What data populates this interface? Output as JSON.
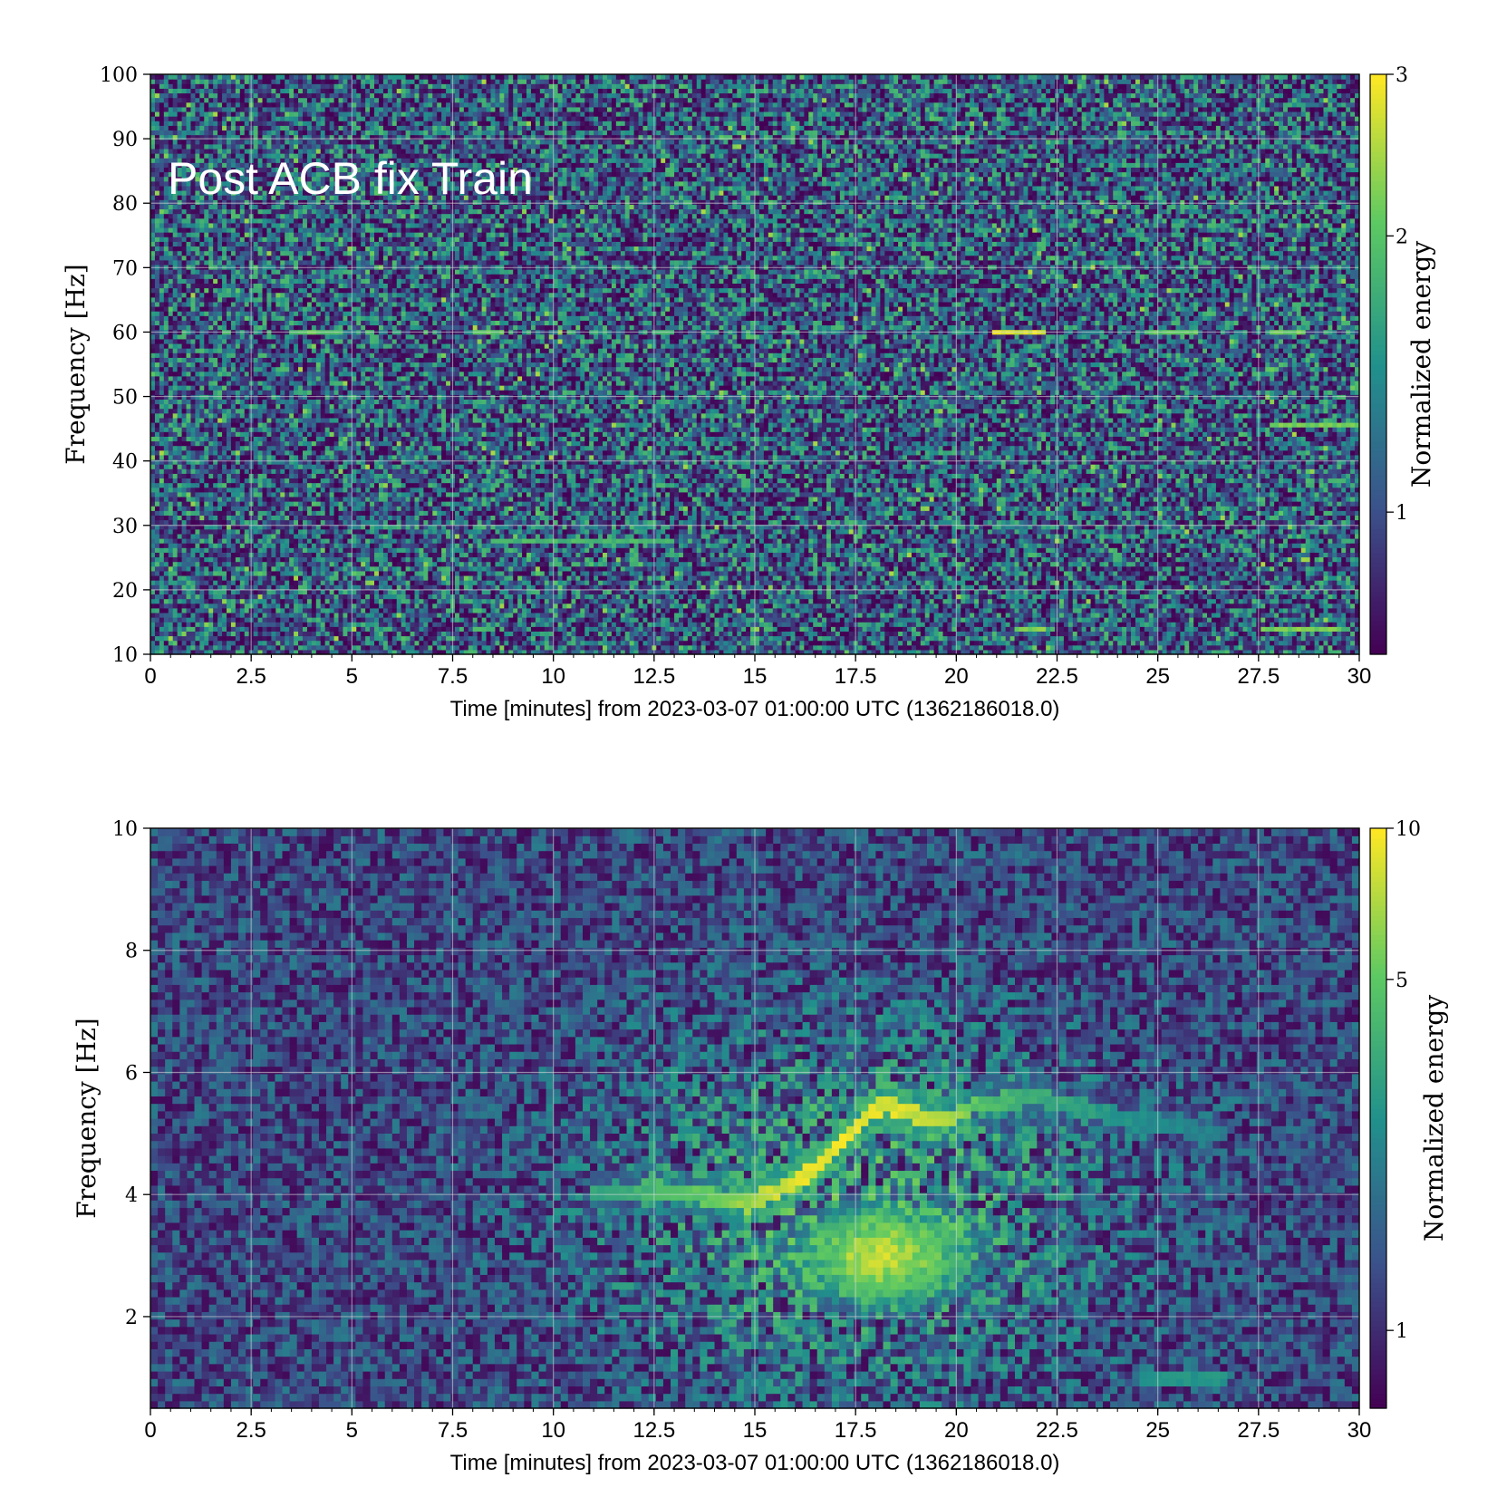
{
  "chart_data": [
    {
      "type": "heatmap",
      "annotation": "Post ACB fix Train",
      "xlabel": "Time [minutes] from 2023-03-07 01:00:00 UTC (1362186018.0)",
      "ylabel": "Frequency [Hz]",
      "xlim": [
        0,
        30
      ],
      "ylim": [
        10,
        100
      ],
      "x_ticks": [
        "0",
        "2.5",
        "5",
        "7.5",
        "10",
        "12.5",
        "15",
        "17.5",
        "20",
        "22.5",
        "25",
        "27.5",
        "30"
      ],
      "y_ticks": [
        "10",
        "20",
        "30",
        "40",
        "50",
        "60",
        "70",
        "80",
        "90",
        "100"
      ],
      "colorbar": {
        "label": "Normalized energy",
        "scale": "log",
        "ticks": [
          "1",
          "2",
          "3"
        ],
        "range": [
          0.7,
          3
        ]
      },
      "colormap": [
        "#440154",
        "#3b528b",
        "#21918c",
        "#5ec962",
        "#fde725"
      ],
      "grid": true,
      "features": [
        {
          "kind": "line",
          "freq": 60,
          "t_start": 3.5,
          "t_end": 4.8,
          "energy": 2.2
        },
        {
          "kind": "line",
          "freq": 60,
          "t_start": 8.0,
          "t_end": 8.8,
          "energy": 2.2
        },
        {
          "kind": "line",
          "freq": 60,
          "t_start": 12.4,
          "t_end": 13.0,
          "energy": 2.0
        },
        {
          "kind": "line",
          "freq": 60,
          "t_start": 20.9,
          "t_end": 22.2,
          "energy": 3.0
        },
        {
          "kind": "line",
          "freq": 60,
          "t_start": 24.8,
          "t_end": 26.0,
          "energy": 2.2
        },
        {
          "kind": "line",
          "freq": 60,
          "t_start": 27.8,
          "t_end": 28.7,
          "energy": 2.3
        },
        {
          "kind": "line",
          "freq": 45.5,
          "t_start": 27.8,
          "t_end": 30.0,
          "energy": 2.4
        },
        {
          "kind": "line",
          "freq": 27.5,
          "t_start": 8.5,
          "t_end": 13.0,
          "energy": 2.0
        },
        {
          "kind": "line",
          "freq": 14,
          "t_start": 21.5,
          "t_end": 22.2,
          "energy": 2.4
        },
        {
          "kind": "line",
          "freq": 14,
          "t_start": 27.6,
          "t_end": 29.6,
          "energy": 2.4
        },
        {
          "kind": "line",
          "freq": 14,
          "t_start": 8.0,
          "t_end": 8.6,
          "energy": 2.0
        },
        {
          "kind": "vline",
          "t": 16.8,
          "f_start": 17,
          "f_end": 37,
          "energy": 2.0
        },
        {
          "kind": "vline",
          "t": 12.0,
          "f_start": 24,
          "f_end": 30,
          "energy": 2.0
        }
      ]
    },
    {
      "type": "heatmap",
      "xlabel": "Time [minutes] from 2023-03-07 01:00:00 UTC (1362186018.0)",
      "ylabel": "Frequency [Hz]",
      "xlim": [
        0,
        30
      ],
      "ylim": [
        0.5,
        10
      ],
      "x_ticks": [
        "0",
        "2.5",
        "5",
        "7.5",
        "10",
        "12.5",
        "15",
        "17.5",
        "20",
        "22.5",
        "25",
        "27.5",
        "30"
      ],
      "y_ticks": [
        "2",
        "4",
        "6",
        "8",
        "10"
      ],
      "colorbar": {
        "label": "Normalized energy",
        "scale": "log",
        "ticks": [
          "1",
          "5",
          "10"
        ],
        "range": [
          0.7,
          10
        ]
      },
      "colormap": [
        "#440154",
        "#3b528b",
        "#21918c",
        "#5ec962",
        "#fde725"
      ],
      "grid": true,
      "features": [
        {
          "kind": "ridge",
          "t": [
            11.0,
            12.5,
            14.0,
            14.8,
            15.5,
            16.5,
            17.5,
            18.2,
            19.0,
            19.8,
            20.6,
            22.0,
            24.0,
            26.5
          ],
          "f": [
            4.0,
            4.1,
            3.95,
            3.85,
            4.05,
            4.4,
            5.1,
            5.5,
            5.3,
            5.25,
            5.5,
            5.6,
            5.3,
            5.0
          ],
          "energy": [
            3.5,
            4.5,
            6.0,
            7.5,
            9.0,
            10.0,
            10.0,
            10.0,
            9.0,
            8.0,
            5.0,
            4.0,
            3.0,
            2.5
          ]
        },
        {
          "kind": "blob",
          "t_center": 18.2,
          "f_center": 3.0,
          "t_width": 2.0,
          "f_width": 0.75,
          "energy": 9.5
        },
        {
          "kind": "band",
          "t_start": 24.5,
          "t_end": 26.8,
          "freq": 1.0,
          "energy": 3.0
        }
      ]
    }
  ]
}
